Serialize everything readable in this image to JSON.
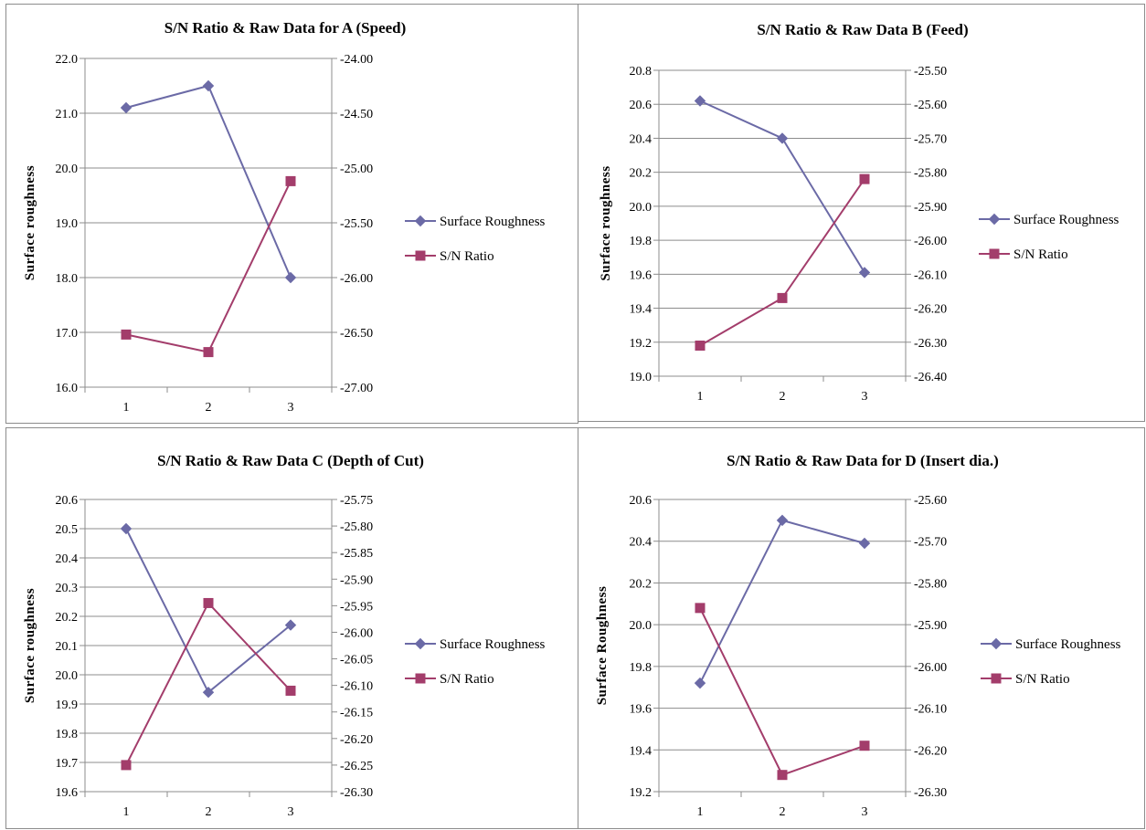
{
  "colors": {
    "surface_roughness": "#6b6aa6",
    "sn_ratio": "#a33d6b",
    "grid": "#8c8c8c"
  },
  "chart_data": [
    {
      "type": "line",
      "title": "S/N Ratio & Raw Data for A (Speed)",
      "ylabel": "Surface roughness",
      "categories": [
        "1",
        "2",
        "3"
      ],
      "ylim": [
        16.0,
        22.0
      ],
      "yticks": [
        "22.0",
        "21.0",
        "20.0",
        "19.0",
        "18.0",
        "17.0",
        "16.0"
      ],
      "y2lim": [
        -27.0,
        -24.0
      ],
      "y2ticks": [
        "-24.00",
        "-24.50",
        "-25.00",
        "-25.50",
        "-26.00",
        "-26.50",
        "-27.00"
      ],
      "series": [
        {
          "name": "Surface Roughness",
          "axis": "left",
          "marker": "diamond",
          "values": [
            21.1,
            21.5,
            18.0
          ]
        },
        {
          "name": "S/N Ratio",
          "axis": "right",
          "marker": "square",
          "values": [
            -26.52,
            -26.68,
            -25.12
          ]
        }
      ],
      "legend": "right"
    },
    {
      "type": "line",
      "title": "S/N Ratio & Raw Data B (Feed)",
      "ylabel": "Surface roughness",
      "categories": [
        "1",
        "2",
        "3"
      ],
      "ylim": [
        19.0,
        20.8
      ],
      "yticks": [
        "20.8",
        "20.6",
        "20.4",
        "20.2",
        "20.0",
        "19.8",
        "19.6",
        "19.4",
        "19.2",
        "19.0"
      ],
      "y2lim": [
        -26.4,
        -25.5
      ],
      "y2ticks": [
        "-25.50",
        "-25.60",
        "-25.70",
        "-25.80",
        "-25.90",
        "-26.00",
        "-26.10",
        "-26.20",
        "-26.30",
        "-26.40"
      ],
      "series": [
        {
          "name": "Surface Roughness",
          "axis": "left",
          "marker": "diamond",
          "values": [
            20.62,
            20.4,
            19.61
          ]
        },
        {
          "name": "S/N Ratio",
          "axis": "right",
          "marker": "square",
          "values": [
            -26.31,
            -26.17,
            -25.82
          ]
        }
      ],
      "legend": "right"
    },
    {
      "type": "line",
      "title": "S/N Ratio & Raw Data C (Depth of Cut)",
      "ylabel": "Surface roughness",
      "categories": [
        "1",
        "2",
        "3"
      ],
      "ylim": [
        19.6,
        20.6
      ],
      "yticks": [
        "20.6",
        "20.5",
        "20.4",
        "20.3",
        "20.2",
        "20.1",
        "20.0",
        "19.9",
        "19.8",
        "19.7",
        "19.6"
      ],
      "y2lim": [
        -26.3,
        -25.75
      ],
      "y2ticks": [
        "-25.75",
        "-25.80",
        "-25.85",
        "-25.90",
        "-25.95",
        "-26.00",
        "-26.05",
        "-26.10",
        "-26.15",
        "-26.20",
        "-26.25",
        "-26.30"
      ],
      "series": [
        {
          "name": "Surface Roughness",
          "axis": "left",
          "marker": "diamond",
          "values": [
            20.5,
            19.94,
            20.17
          ]
        },
        {
          "name": "S/N Ratio",
          "axis": "right",
          "marker": "square",
          "values": [
            -26.25,
            -25.945,
            -26.11
          ]
        }
      ],
      "legend": "right"
    },
    {
      "type": "line",
      "title": "S/N Ratio & Raw Data for D (Insert dia.)",
      "ylabel": "Surface Roughness",
      "categories": [
        "1",
        "2",
        "3"
      ],
      "ylim": [
        19.2,
        20.6
      ],
      "yticks": [
        "20.6",
        "20.4",
        "20.2",
        "20.0",
        "19.8",
        "19.6",
        "19.4",
        "19.2"
      ],
      "y2lim": [
        -26.3,
        -25.6
      ],
      "y2ticks": [
        "-25.60",
        "-25.70",
        "-25.80",
        "-25.90",
        "-26.00",
        "-26.10",
        "-26.20",
        "-26.30"
      ],
      "series": [
        {
          "name": "Surface Roughness",
          "axis": "left",
          "marker": "diamond",
          "values": [
            19.72,
            20.5,
            20.39
          ]
        },
        {
          "name": "S/N Ratio",
          "axis": "right",
          "marker": "square",
          "values": [
            -25.86,
            -26.26,
            -26.19
          ]
        }
      ],
      "legend": "right"
    }
  ]
}
